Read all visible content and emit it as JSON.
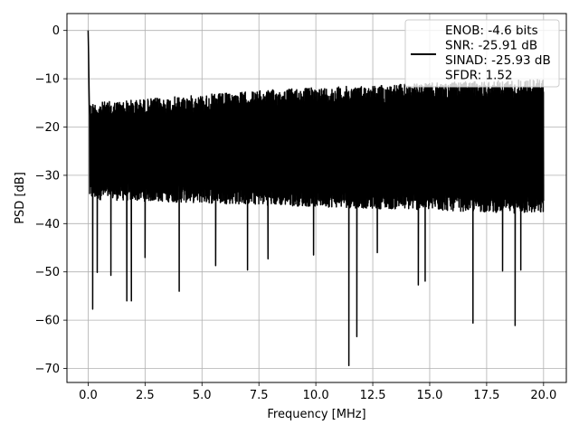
{
  "chart_data": {
    "type": "line",
    "title": "",
    "xlabel": "Frequency [MHz]",
    "ylabel": "PSD [dB]",
    "xlim": [
      -0.93,
      21.0
    ],
    "ylim": [
      -72.9,
      3.5
    ],
    "xticks": [
      0.0,
      2.5,
      5.0,
      7.5,
      10.0,
      12.5,
      15.0,
      17.5,
      20.0
    ],
    "xtick_labels": [
      "0.0",
      "2.5",
      "5.0",
      "7.5",
      "10.0",
      "12.5",
      "15.0",
      "17.5",
      "20.0"
    ],
    "yticks": [
      0,
      -10,
      -20,
      -30,
      -40,
      -50,
      -60,
      -70
    ],
    "ytick_labels": [
      "0",
      "−10",
      "−20",
      "−30",
      "−40",
      "−50",
      "−60",
      "−70"
    ],
    "grid": true,
    "legend_position": "top-right",
    "series": [
      {
        "name": "ENOB: -4.6 bits\nSNR: -25.91 dB\nSINAD: -25.93 dB\nSFDR: 1.52",
        "color": "#000000",
        "x_range": [
          0.0,
          20.0
        ],
        "dc_peak": 0.0,
        "noise_floor_top": [
          -15,
          -12,
          -10
        ],
        "noise_floor_bottom": [
          -35,
          -38
        ],
        "notable_minima": [
          {
            "x": 0.2,
            "y": -57.7
          },
          {
            "x": 0.4,
            "y": -50.1
          },
          {
            "x": 1.0,
            "y": -50.7
          },
          {
            "x": 1.7,
            "y": -56.0
          },
          {
            "x": 1.9,
            "y": -56.0
          },
          {
            "x": 2.5,
            "y": -47.0
          },
          {
            "x": 4.0,
            "y": -54.0
          },
          {
            "x": 5.6,
            "y": -48.7
          },
          {
            "x": 7.0,
            "y": -49.6
          },
          {
            "x": 7.9,
            "y": -47.3
          },
          {
            "x": 9.9,
            "y": -46.5
          },
          {
            "x": 11.45,
            "y": -69.4
          },
          {
            "x": 11.8,
            "y": -63.4
          },
          {
            "x": 12.7,
            "y": -46.0
          },
          {
            "x": 14.5,
            "y": -52.7
          },
          {
            "x": 14.8,
            "y": -51.9
          },
          {
            "x": 16.9,
            "y": -60.6
          },
          {
            "x": 18.2,
            "y": -49.8
          },
          {
            "x": 18.75,
            "y": -61.1
          },
          {
            "x": 19.0,
            "y": -49.6
          }
        ]
      }
    ]
  }
}
